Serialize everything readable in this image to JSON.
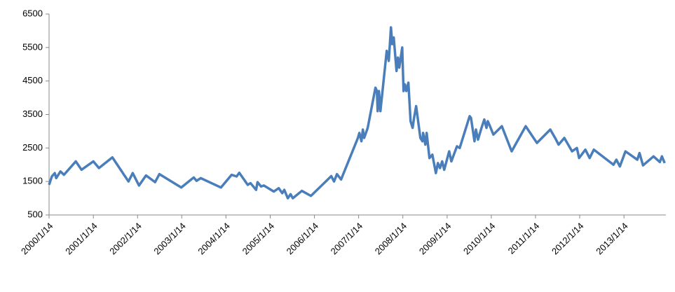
{
  "chart_data": {
    "type": "line",
    "x": [
      "2000/1/14",
      "2000/2/6",
      "2000/3/1",
      "2000/3/13",
      "2000/4/17",
      "2000/5/16",
      "2000/8/22",
      "2000/10/8",
      "2001/1/14",
      "2001/3/1",
      "2001/6/20",
      "2001/10/31",
      "2001/12/5",
      "2002/1/26",
      "2002/3/25",
      "2002/6/8",
      "2002/7/13",
      "2003/1/10",
      "2003/4/23",
      "2003/5/16",
      "2003/6/20",
      "2003/12/4",
      "2004/3/1",
      "2004/4/11",
      "2004/5/3",
      "2004/7/12",
      "2004/8/4",
      "2004/9/19",
      "2004/10/1",
      "2004/10/30",
      "2004/11/22",
      "2005/2/12",
      "2005/3/25",
      "2005/4/23",
      "2005/5/10",
      "2005/6/8",
      "2005/7/1",
      "2005/7/19",
      "2005/10/2",
      "2005/12/16",
      "2006/6/2",
      "2006/6/25",
      "2006/7/19",
      "2006/8/22",
      "2007/1/8",
      "2007/1/20",
      "2007/2/6",
      "2007/2/18",
      "2007/3/1",
      "2007/3/30",
      "2007/6/2",
      "2007/6/14",
      "2007/6/20",
      "2007/7/1",
      "2007/7/13",
      "2007/9/3",
      "2007/9/20",
      "2007/10/8",
      "2007/10/19",
      "2007/10/31",
      "2007/11/23",
      "2007/12/5",
      "2007/12/16",
      "2008/1/9",
      "2008/1/20",
      "2008/1/31",
      "2008/2/12",
      "2008/2/29",
      "2008/3/18",
      "2008/4/4",
      "2008/4/16",
      "2008/5/3",
      "2008/6/7",
      "2008/6/24",
      "2008/6/30",
      "2008/7/18",
      "2008/7/29",
      "2008/8/21",
      "2008/9/14",
      "2008/10/13",
      "2008/10/30",
      "2008/11/16",
      "2008/12/4",
      "2008/12/21",
      "2009/1/31",
      "2009/2/18",
      "2009/4/5",
      "2009/4/28",
      "2009/7/19",
      "2009/7/30",
      "2009/8/28",
      "2009/9/9",
      "2009/9/26",
      "2009/10/25",
      "2009/11/17",
      "2009/12/5",
      "2009/12/16",
      "2010/1/3",
      "2010/1/31",
      "2010/4/11",
      "2010/7/1",
      "2010/10/25",
      "2011/1/26",
      "2011/5/16",
      "2011/6/25",
      "2011/7/24",
      "2011/9/9",
      "2011/11/12",
      "2011/12/22",
      "2012/1/9",
      "2012/3/1",
      "2012/4/5",
      "2012/5/10",
      "2012/10/19",
      "2012/11/12",
      "2012/12/11",
      "2013/1/26",
      "2013/5/4",
      "2013/5/22",
      "2013/6/20",
      "2013/9/15",
      "2013/11/6",
      "2013/11/23",
      "2013/12/16"
    ],
    "series": [
      {
        "color": "#4a7ebb",
        "values": [
          1400,
          1650,
          1750,
          1600,
          1800,
          1700,
          2100,
          1850,
          2100,
          1900,
          2220,
          1500,
          1750,
          1380,
          1680,
          1480,
          1720,
          1320,
          1620,
          1520,
          1600,
          1320,
          1700,
          1650,
          1760,
          1400,
          1450,
          1250,
          1480,
          1350,
          1380,
          1200,
          1300,
          1150,
          1250,
          1000,
          1120,
          1000,
          1220,
          1070,
          1660,
          1500,
          1720,
          1560,
          2800,
          2950,
          2700,
          3050,
          2800,
          3100,
          4300,
          4200,
          3600,
          4200,
          3600,
          5400,
          5100,
          6100,
          5600,
          5800,
          4800,
          5200,
          4900,
          5500,
          4200,
          4400,
          4200,
          4450,
          3300,
          3100,
          3400,
          3750,
          2800,
          2700,
          2950,
          2600,
          2950,
          2200,
          2300,
          1750,
          2050,
          1900,
          2100,
          1850,
          2400,
          2100,
          2550,
          2500,
          3450,
          3400,
          2700,
          3050,
          2750,
          3100,
          3350,
          3100,
          3300,
          3150,
          2900,
          3150,
          2400,
          3150,
          2650,
          3050,
          2800,
          2600,
          2800,
          2400,
          2500,
          2200,
          2450,
          2200,
          2450,
          2000,
          2150,
          1950,
          2400,
          2150,
          2350,
          1980,
          2250,
          2080,
          2250,
          2050
        ]
      }
    ],
    "xlim": [
      "2000/1/14",
      "2013/12/26"
    ],
    "xticks": [
      "2000/1/14",
      "2001/1/14",
      "2002/1/14",
      "2003/1/14",
      "2004/1/14",
      "2005/1/14",
      "2006/1/14",
      "2007/1/14",
      "2008/1/14",
      "2009/1/14",
      "2010/1/14",
      "2011/1/14",
      "2012/1/14",
      "2013/1/14"
    ],
    "ylim": [
      500,
      6500
    ],
    "yticks": [
      500,
      1500,
      2500,
      3500,
      4500,
      5500,
      6500
    ],
    "grid": false
  }
}
